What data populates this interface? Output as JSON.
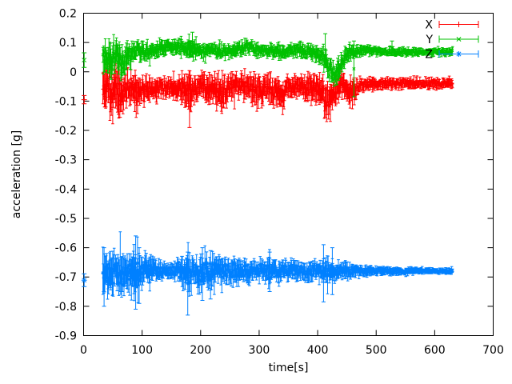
{
  "chart_data": {
    "type": "scatter",
    "title": "",
    "xlabel": "time[s]",
    "ylabel": "acceleration [g]",
    "xlim": [
      0,
      700
    ],
    "ylim": [
      -0.9,
      0.2
    ],
    "xticks": [
      0,
      100,
      200,
      300,
      400,
      500,
      600,
      700
    ],
    "yticks": [
      0.2,
      0.1,
      0,
      -0.1,
      -0.2,
      -0.3,
      -0.4,
      -0.5,
      -0.6,
      -0.7,
      -0.8,
      -0.9
    ],
    "grid": false,
    "legend_position": "top-right-inside",
    "axis_color": "#000000",
    "background_color": "#ffffff",
    "series": [
      {
        "name": "X",
        "color": "#ff0000",
        "marker": "plus",
        "seed": 11,
        "step": 0.8,
        "t_start": 33,
        "t_end": 631,
        "isolated": [
          {
            "t": 1,
            "y": -0.095,
            "err": 0.014
          }
        ],
        "outliers": [
          {
            "t": 62,
            "lo": -0.155,
            "hi": -0.04
          },
          {
            "t": 181,
            "lo": -0.19,
            "hi": -0.045
          },
          {
            "t": 413,
            "lo": -0.155,
            "hi": -0.06
          }
        ],
        "envelope": [
          [
            33,
            -0.06,
            0.075
          ],
          [
            40,
            -0.05,
            0.07
          ],
          [
            48,
            -0.07,
            0.08
          ],
          [
            55,
            -0.05,
            0.06
          ],
          [
            62,
            -0.08,
            0.07
          ],
          [
            70,
            -0.06,
            0.055
          ],
          [
            80,
            -0.05,
            0.045
          ],
          [
            90,
            -0.065,
            0.055
          ],
          [
            100,
            -0.055,
            0.04
          ],
          [
            115,
            -0.05,
            0.035
          ],
          [
            130,
            -0.055,
            0.035
          ],
          [
            145,
            -0.05,
            0.03
          ],
          [
            160,
            -0.055,
            0.035
          ],
          [
            175,
            -0.06,
            0.045
          ],
          [
            182,
            -0.07,
            0.06
          ],
          [
            190,
            -0.055,
            0.035
          ],
          [
            205,
            -0.05,
            0.035
          ],
          [
            215,
            -0.065,
            0.05
          ],
          [
            225,
            -0.055,
            0.04
          ],
          [
            235,
            -0.07,
            0.055
          ],
          [
            245,
            -0.055,
            0.04
          ],
          [
            260,
            -0.05,
            0.035
          ],
          [
            275,
            -0.055,
            0.04
          ],
          [
            285,
            -0.05,
            0.035
          ],
          [
            297,
            -0.075,
            0.05
          ],
          [
            305,
            -0.06,
            0.04
          ],
          [
            315,
            -0.05,
            0.035
          ],
          [
            325,
            -0.065,
            0.045
          ],
          [
            338,
            -0.08,
            0.05
          ],
          [
            348,
            -0.055,
            0.035
          ],
          [
            360,
            -0.05,
            0.03
          ],
          [
            375,
            -0.05,
            0.035
          ],
          [
            385,
            -0.06,
            0.045
          ],
          [
            395,
            -0.055,
            0.04
          ],
          [
            405,
            -0.07,
            0.05
          ],
          [
            415,
            -0.095,
            0.05
          ],
          [
            425,
            -0.08,
            0.045
          ],
          [
            435,
            -0.06,
            0.04
          ],
          [
            445,
            -0.05,
            0.035
          ],
          [
            452,
            -0.065,
            0.045
          ],
          [
            460,
            -0.07,
            0.05
          ],
          [
            468,
            -0.05,
            0.025
          ],
          [
            480,
            -0.042,
            0.018
          ],
          [
            520,
            -0.04,
            0.016
          ],
          [
            560,
            -0.038,
            0.015
          ],
          [
            600,
            -0.04,
            0.015
          ],
          [
            631,
            -0.04,
            0.015
          ]
        ]
      },
      {
        "name": "Y",
        "color": "#00c000",
        "marker": "cross",
        "seed": 22,
        "step": 0.8,
        "t_start": 33,
        "t_end": 631,
        "isolated": [
          {
            "t": 1,
            "y": 0.04,
            "err": 0.025
          }
        ],
        "outliers": [
          {
            "t": 186,
            "lo": 0.05,
            "hi": 0.135
          },
          {
            "t": 413,
            "lo": 0.02,
            "hi": 0.13
          },
          {
            "t": 462,
            "lo": -0.085,
            "hi": 0.105
          },
          {
            "t": 527,
            "lo": 0.055,
            "hi": 0.105
          }
        ],
        "envelope": [
          [
            33,
            0.05,
            0.055
          ],
          [
            40,
            0.06,
            0.05
          ],
          [
            48,
            0.045,
            0.055
          ],
          [
            55,
            0.06,
            0.045
          ],
          [
            62,
            0.035,
            0.055
          ],
          [
            68,
            0.03,
            0.05
          ],
          [
            75,
            0.055,
            0.04
          ],
          [
            85,
            0.065,
            0.035
          ],
          [
            95,
            0.07,
            0.03
          ],
          [
            110,
            0.072,
            0.025
          ],
          [
            125,
            0.075,
            0.025
          ],
          [
            140,
            0.08,
            0.025
          ],
          [
            155,
            0.085,
            0.022
          ],
          [
            170,
            0.085,
            0.025
          ],
          [
            182,
            0.08,
            0.03
          ],
          [
            195,
            0.072,
            0.022
          ],
          [
            210,
            0.07,
            0.02
          ],
          [
            225,
            0.072,
            0.022
          ],
          [
            240,
            0.07,
            0.02
          ],
          [
            255,
            0.072,
            0.02
          ],
          [
            268,
            0.08,
            0.022
          ],
          [
            280,
            0.085,
            0.022
          ],
          [
            292,
            0.075,
            0.02
          ],
          [
            305,
            0.07,
            0.02
          ],
          [
            320,
            0.072,
            0.02
          ],
          [
            335,
            0.068,
            0.022
          ],
          [
            350,
            0.072,
            0.02
          ],
          [
            365,
            0.075,
            0.022
          ],
          [
            378,
            0.07,
            0.02
          ],
          [
            390,
            0.068,
            0.022
          ],
          [
            402,
            0.06,
            0.025
          ],
          [
            412,
            0.045,
            0.03
          ],
          [
            422,
            0.0,
            0.035
          ],
          [
            430,
            -0.01,
            0.03
          ],
          [
            436,
            0.01,
            0.035
          ],
          [
            444,
            0.04,
            0.03
          ],
          [
            452,
            0.065,
            0.025
          ],
          [
            462,
            0.07,
            0.02
          ],
          [
            475,
            0.072,
            0.015
          ],
          [
            500,
            0.07,
            0.013
          ],
          [
            540,
            0.068,
            0.012
          ],
          [
            580,
            0.066,
            0.011
          ],
          [
            610,
            0.067,
            0.011
          ],
          [
            631,
            0.067,
            0.011
          ]
        ]
      },
      {
        "name": "Z",
        "color": "#0080ff",
        "marker": "star",
        "seed": 33,
        "step": 0.8,
        "t_start": 33,
        "t_end": 631,
        "isolated": [
          {
            "t": 1,
            "y": -0.711,
            "err": 0.022
          }
        ],
        "outliers": [
          {
            "t": 35,
            "lo": -0.8,
            "hi": -0.6
          },
          {
            "t": 89,
            "lo": -0.81,
            "hi": -0.56
          },
          {
            "t": 95,
            "lo": -0.79,
            "hi": -0.6
          },
          {
            "t": 178,
            "lo": -0.83,
            "hi": -0.615
          },
          {
            "t": 203,
            "lo": -0.78,
            "hi": -0.6
          },
          {
            "t": 217,
            "lo": -0.775,
            "hi": -0.61
          },
          {
            "t": 318,
            "lo": -0.75,
            "hi": -0.615
          },
          {
            "t": 410,
            "lo": -0.785,
            "hi": -0.59
          },
          {
            "t": 425,
            "lo": -0.76,
            "hi": -0.6
          }
        ],
        "envelope": [
          [
            33,
            -0.69,
            0.06
          ],
          [
            45,
            -0.69,
            0.065
          ],
          [
            55,
            -0.685,
            0.06
          ],
          [
            65,
            -0.69,
            0.065
          ],
          [
            75,
            -0.685,
            0.06
          ],
          [
            85,
            -0.69,
            0.065
          ],
          [
            95,
            -0.685,
            0.055
          ],
          [
            105,
            -0.68,
            0.045
          ],
          [
            115,
            -0.682,
            0.038
          ],
          [
            130,
            -0.68,
            0.028
          ],
          [
            145,
            -0.678,
            0.022
          ],
          [
            160,
            -0.68,
            0.03
          ],
          [
            170,
            -0.685,
            0.045
          ],
          [
            180,
            -0.69,
            0.055
          ],
          [
            190,
            -0.68,
            0.045
          ],
          [
            200,
            -0.685,
            0.05
          ],
          [
            212,
            -0.68,
            0.045
          ],
          [
            222,
            -0.685,
            0.05
          ],
          [
            232,
            -0.68,
            0.04
          ],
          [
            245,
            -0.678,
            0.035
          ],
          [
            258,
            -0.68,
            0.04
          ],
          [
            270,
            -0.678,
            0.032
          ],
          [
            282,
            -0.68,
            0.035
          ],
          [
            295,
            -0.678,
            0.03
          ],
          [
            308,
            -0.68,
            0.035
          ],
          [
            318,
            -0.685,
            0.04
          ],
          [
            330,
            -0.68,
            0.03
          ],
          [
            345,
            -0.678,
            0.028
          ],
          [
            358,
            -0.68,
            0.032
          ],
          [
            370,
            -0.678,
            0.028
          ],
          [
            382,
            -0.68,
            0.03
          ],
          [
            395,
            -0.678,
            0.026
          ],
          [
            408,
            -0.68,
            0.03
          ],
          [
            418,
            -0.682,
            0.038
          ],
          [
            428,
            -0.68,
            0.03
          ],
          [
            440,
            -0.678,
            0.025
          ],
          [
            455,
            -0.68,
            0.022
          ],
          [
            470,
            -0.679,
            0.018
          ],
          [
            490,
            -0.68,
            0.015
          ],
          [
            520,
            -0.679,
            0.013
          ],
          [
            550,
            -0.68,
            0.011
          ],
          [
            580,
            -0.679,
            0.009
          ],
          [
            610,
            -0.68,
            0.008
          ],
          [
            631,
            -0.68,
            0.008
          ]
        ]
      }
    ]
  }
}
